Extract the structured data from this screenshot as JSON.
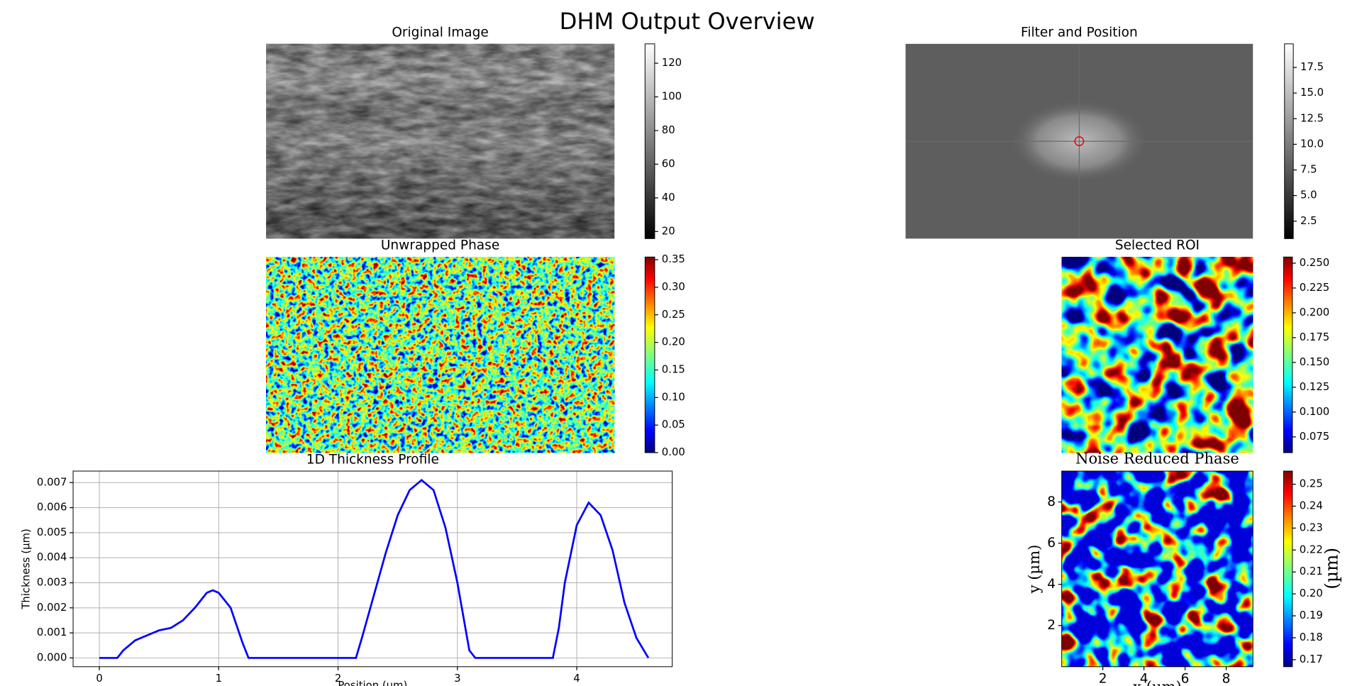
{
  "title": "DHM Output Overview",
  "chart_data": [
    {
      "type": "image",
      "title": "Original Image",
      "colorbar": {
        "colormap": "gray",
        "lim": [
          15.8,
          131.5
        ],
        "ticks": [
          20,
          40,
          60,
          80,
          100,
          120
        ]
      }
    },
    {
      "type": "image",
      "title": "Filter and Position",
      "colorbar": {
        "colormap": "gray",
        "lim": [
          0.8,
          19.8
        ],
        "ticks": [
          2.5,
          {
            "value": 5,
            "label": "5.0"
          },
          7.5,
          {
            "value": 10,
            "label": "10.0"
          },
          12.5,
          {
            "value": 15,
            "label": "15.0"
          },
          17.5
        ]
      }
    },
    {
      "type": "image",
      "title": "Unwrapped Phase",
      "colorbar": {
        "colormap": "jet",
        "lim": [
          0,
          0.3548
        ],
        "ticks": [
          {
            "value": 0,
            "label": "0.00"
          },
          0.05,
          {
            "value": 0.1,
            "label": "0.10"
          },
          0.15,
          {
            "value": 0.2,
            "label": "0.20"
          },
          0.25,
          {
            "value": 0.3,
            "label": "0.30"
          },
          0.35
        ]
      }
    },
    {
      "type": "image",
      "title": "Selected ROI",
      "colorbar": {
        "colormap": "jet",
        "lim": [
          0.0591,
          0.2562
        ],
        "ticks": [
          0.075,
          {
            "value": 0.1,
            "label": "0.100"
          },
          0.125,
          {
            "value": 0.15,
            "label": "0.150"
          },
          0.175,
          {
            "value": 0.2,
            "label": "0.200"
          },
          0.225,
          {
            "value": 0.25,
            "label": "0.250"
          }
        ]
      }
    },
    {
      "type": "line",
      "title": "1D Thickness Profile",
      "xlabel": "Position (µm)",
      "ylabel": "Thickness (µm)",
      "color": "#0000ff",
      "grid": true,
      "x": [
        0,
        0.15,
        0.2,
        0.3,
        0.4,
        0.5,
        0.6,
        0.7,
        0.8,
        0.9,
        0.95,
        1.0,
        1.1,
        1.2,
        1.25,
        2.15,
        2.2,
        2.3,
        2.4,
        2.5,
        2.6,
        2.7,
        2.8,
        2.9,
        3.0,
        3.1,
        3.15,
        3.8,
        3.85,
        3.9,
        4.0,
        4.1,
        4.2,
        4.3,
        4.4,
        4.5,
        4.6
      ],
      "values": [
        0,
        0,
        0.0003,
        0.0007,
        0.0009,
        0.0011,
        0.0012,
        0.0015,
        0.002,
        0.0026,
        0.0027,
        0.0026,
        0.002,
        0.0006,
        0,
        0,
        0.0008,
        0.0025,
        0.0042,
        0.0057,
        0.0067,
        0.0071,
        0.0067,
        0.0052,
        0.003,
        0.0003,
        0,
        0,
        0.0012,
        0.003,
        0.0053,
        0.0062,
        0.0057,
        0.0043,
        0.0022,
        0.0008,
        0
      ],
      "xlim": [
        -0.22,
        4.8
      ],
      "ylim": [
        -0.00035,
        0.00746
      ],
      "xticks": [
        0,
        1,
        2,
        3,
        4
      ],
      "yticks": [
        {
          "value": 0,
          "label": "0.000"
        },
        0.001,
        0.002,
        0.003,
        0.004,
        0.005,
        0.006,
        0.007
      ]
    },
    {
      "type": "image",
      "title": "Noise Reduced Phase",
      "xlabel": "x (µm)",
      "ylabel": "y (µm)",
      "xlim": [
        0,
        9.3
      ],
      "ylim": [
        0,
        9.5
      ],
      "xticks": [
        2,
        4,
        6,
        8
      ],
      "yticks": [
        2,
        4,
        6,
        8
      ],
      "colorbar": {
        "colormap": "jet",
        "label": "(µm)",
        "lim": [
          0.1668,
          0.256
        ],
        "ticks": [
          0.17,
          0.18,
          0.19,
          {
            "value": 0.2,
            "label": "0.20"
          },
          0.21,
          0.22,
          0.23,
          0.24,
          0.25
        ]
      }
    }
  ]
}
